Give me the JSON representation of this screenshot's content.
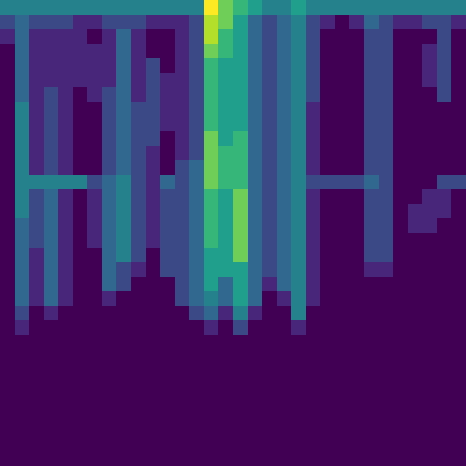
{
  "chart_data": {
    "type": "heatmap",
    "tick_labels": false,
    "color": "viridis",
    "color_range": [
      0,
      9
    ],
    "values": [
      [
        4,
        4,
        4,
        4,
        4,
        4,
        4,
        4,
        4,
        4,
        4,
        4,
        4,
        4,
        9,
        7,
        6,
        5,
        4,
        4,
        5,
        4,
        4,
        4,
        4,
        4,
        4,
        4,
        4,
        4,
        4,
        4
      ],
      [
        2,
        3,
        2,
        2,
        2,
        1,
        1,
        2,
        2,
        2,
        1,
        1,
        1,
        2,
        8,
        7,
        5,
        3,
        2,
        3,
        4,
        2,
        1,
        0,
        1,
        3,
        2,
        1,
        1,
        2,
        2,
        1
      ],
      [
        1,
        3,
        1,
        1,
        1,
        1,
        0,
        1,
        3,
        1,
        0,
        0,
        1,
        2,
        8,
        6,
        5,
        3,
        2,
        3,
        4,
        2,
        0,
        0,
        0,
        2,
        2,
        0,
        0,
        0,
        2,
        0
      ],
      [
        0,
        3,
        1,
        1,
        1,
        1,
        1,
        1,
        3,
        1,
        0,
        0,
        1,
        2,
        7,
        6,
        5,
        3,
        2,
        3,
        4,
        2,
        0,
        0,
        0,
        2,
        2,
        0,
        0,
        1,
        2,
        0
      ],
      [
        0,
        3,
        1,
        1,
        1,
        1,
        1,
        1,
        3,
        1,
        2,
        0,
        1,
        2,
        6,
        5,
        5,
        3,
        2,
        3,
        4,
        2,
        0,
        0,
        0,
        2,
        2,
        0,
        0,
        1,
        2,
        0
      ],
      [
        0,
        3,
        1,
        1,
        1,
        1,
        1,
        1,
        3,
        1,
        2,
        1,
        1,
        2,
        6,
        5,
        5,
        3,
        2,
        3,
        4,
        2,
        0,
        0,
        0,
        2,
        2,
        0,
        0,
        1,
        2,
        0
      ],
      [
        0,
        3,
        1,
        2,
        1,
        0,
        1,
        2,
        3,
        1,
        2,
        1,
        1,
        2,
        6,
        5,
        5,
        3,
        2,
        3,
        4,
        2,
        0,
        0,
        0,
        2,
        2,
        0,
        0,
        0,
        2,
        0
      ],
      [
        0,
        4,
        1,
        2,
        1,
        0,
        0,
        2,
        3,
        2,
        2,
        1,
        1,
        2,
        6,
        5,
        5,
        3,
        2,
        3,
        4,
        1,
        0,
        0,
        0,
        2,
        2,
        0,
        0,
        0,
        0,
        0
      ],
      [
        0,
        4,
        1,
        2,
        1,
        0,
        0,
        2,
        3,
        2,
        2,
        1,
        1,
        2,
        6,
        5,
        5,
        3,
        2,
        3,
        4,
        1,
        0,
        0,
        0,
        2,
        2,
        0,
        0,
        0,
        0,
        0
      ],
      [
        0,
        4,
        1,
        2,
        1,
        0,
        0,
        2,
        3,
        2,
        2,
        0,
        1,
        2,
        7,
        5,
        6,
        3,
        2,
        3,
        4,
        1,
        0,
        0,
        0,
        2,
        2,
        0,
        0,
        0,
        0,
        0
      ],
      [
        0,
        4,
        1,
        2,
        1,
        0,
        0,
        2,
        3,
        2,
        1,
        0,
        1,
        2,
        7,
        6,
        6,
        3,
        2,
        3,
        4,
        1,
        0,
        0,
        0,
        2,
        2,
        0,
        0,
        0,
        0,
        0
      ],
      [
        0,
        4,
        1,
        2,
        1,
        0,
        0,
        2,
        3,
        2,
        1,
        0,
        2,
        3,
        7,
        6,
        6,
        3,
        2,
        3,
        4,
        1,
        0,
        0,
        0,
        2,
        2,
        0,
        0,
        0,
        0,
        0
      ],
      [
        0,
        4,
        4,
        4,
        4,
        4,
        2,
        3,
        4,
        2,
        1,
        3,
        2,
        3,
        7,
        6,
        6,
        3,
        2,
        3,
        4,
        2,
        2,
        2,
        2,
        3,
        2,
        0,
        0,
        0,
        2,
        2
      ],
      [
        0,
        4,
        2,
        3,
        1,
        0,
        1,
        3,
        4,
        2,
        1,
        2,
        2,
        3,
        6,
        5,
        7,
        3,
        2,
        3,
        4,
        1,
        0,
        0,
        0,
        2,
        2,
        0,
        0,
        1,
        1,
        0
      ],
      [
        0,
        4,
        2,
        3,
        1,
        0,
        1,
        3,
        4,
        2,
        1,
        2,
        2,
        3,
        6,
        5,
        7,
        3,
        2,
        3,
        4,
        1,
        0,
        0,
        0,
        2,
        2,
        0,
        1,
        1,
        1,
        0
      ],
      [
        0,
        3,
        2,
        3,
        1,
        0,
        1,
        3,
        4,
        2,
        1,
        2,
        2,
        3,
        6,
        5,
        7,
        3,
        2,
        3,
        4,
        1,
        0,
        0,
        0,
        2,
        2,
        0,
        1,
        1,
        0,
        0
      ],
      [
        0,
        3,
        2,
        3,
        1,
        0,
        1,
        3,
        4,
        2,
        1,
        2,
        2,
        3,
        6,
        5,
        7,
        3,
        2,
        3,
        4,
        1,
        0,
        0,
        0,
        2,
        2,
        0,
        0,
        0,
        0,
        0
      ],
      [
        0,
        3,
        1,
        3,
        1,
        0,
        0,
        3,
        4,
        2,
        0,
        2,
        2,
        3,
        5,
        5,
        7,
        3,
        2,
        3,
        4,
        1,
        0,
        0,
        0,
        2,
        2,
        0,
        0,
        0,
        0,
        0
      ],
      [
        0,
        3,
        1,
        3,
        1,
        0,
        0,
        3,
        2,
        1,
        0,
        2,
        2,
        3,
        5,
        5,
        5,
        3,
        2,
        3,
        4,
        1,
        0,
        0,
        0,
        1,
        1,
        0,
        0,
        0,
        0,
        0
      ],
      [
        0,
        3,
        1,
        3,
        1,
        0,
        0,
        3,
        2,
        0,
        0,
        0,
        2,
        3,
        5,
        3,
        5,
        3,
        1,
        3,
        4,
        1,
        0,
        0,
        0,
        0,
        0,
        0,
        0,
        0,
        0,
        0
      ],
      [
        0,
        3,
        1,
        3,
        1,
        0,
        0,
        1,
        0,
        0,
        0,
        0,
        2,
        3,
        4,
        3,
        5,
        3,
        0,
        1,
        4,
        1,
        0,
        0,
        0,
        0,
        0,
        0,
        0,
        0,
        0,
        0
      ],
      [
        0,
        2,
        0,
        1,
        0,
        0,
        0,
        0,
        0,
        0,
        0,
        0,
        0,
        2,
        3,
        1,
        4,
        1,
        0,
        0,
        4,
        0,
        0,
        0,
        0,
        0,
        0,
        0,
        0,
        0,
        0,
        0
      ],
      [
        0,
        1,
        0,
        0,
        0,
        0,
        0,
        0,
        0,
        0,
        0,
        0,
        0,
        0,
        1,
        0,
        2,
        0,
        0,
        0,
        1,
        0,
        0,
        0,
        0,
        0,
        0,
        0,
        0,
        0,
        0,
        0
      ],
      [
        0,
        0,
        0,
        0,
        0,
        0,
        0,
        0,
        0,
        0,
        0,
        0,
        0,
        0,
        0,
        0,
        0,
        0,
        0,
        0,
        0,
        0,
        0,
        0,
        0,
        0,
        0,
        0,
        0,
        0,
        0,
        0
      ],
      [
        0,
        0,
        0,
        0,
        0,
        0,
        0,
        0,
        0,
        0,
        0,
        0,
        0,
        0,
        0,
        0,
        0,
        0,
        0,
        0,
        0,
        0,
        0,
        0,
        0,
        0,
        0,
        0,
        0,
        0,
        0,
        0
      ],
      [
        0,
        0,
        0,
        0,
        0,
        0,
        0,
        0,
        0,
        0,
        0,
        0,
        0,
        0,
        0,
        0,
        0,
        0,
        0,
        0,
        0,
        0,
        0,
        0,
        0,
        0,
        0,
        0,
        0,
        0,
        0,
        0
      ],
      [
        0,
        0,
        0,
        0,
        0,
        0,
        0,
        0,
        0,
        0,
        0,
        0,
        0,
        0,
        0,
        0,
        0,
        0,
        0,
        0,
        0,
        0,
        0,
        0,
        0,
        0,
        0,
        0,
        0,
        0,
        0,
        0
      ],
      [
        0,
        0,
        0,
        0,
        0,
        0,
        0,
        0,
        0,
        0,
        0,
        0,
        0,
        0,
        0,
        0,
        0,
        0,
        0,
        0,
        0,
        0,
        0,
        0,
        0,
        0,
        0,
        0,
        0,
        0,
        0,
        0
      ],
      [
        0,
        0,
        0,
        0,
        0,
        0,
        0,
        0,
        0,
        0,
        0,
        0,
        0,
        0,
        0,
        0,
        0,
        0,
        0,
        0,
        0,
        0,
        0,
        0,
        0,
        0,
        0,
        0,
        0,
        0,
        0,
        0
      ],
      [
        0,
        0,
        0,
        0,
        0,
        0,
        0,
        0,
        0,
        0,
        0,
        0,
        0,
        0,
        0,
        0,
        0,
        0,
        0,
        0,
        0,
        0,
        0,
        0,
        0,
        0,
        0,
        0,
        0,
        0,
        0,
        0
      ],
      [
        0,
        0,
        0,
        0,
        0,
        0,
        0,
        0,
        0,
        0,
        0,
        0,
        0,
        0,
        0,
        0,
        0,
        0,
        0,
        0,
        0,
        0,
        0,
        0,
        0,
        0,
        0,
        0,
        0,
        0,
        0,
        0
      ],
      [
        0,
        0,
        0,
        0,
        0,
        0,
        0,
        0,
        0,
        0,
        0,
        0,
        0,
        0,
        0,
        0,
        0,
        0,
        0,
        0,
        0,
        0,
        0,
        0,
        0,
        0,
        0,
        0,
        0,
        0,
        0,
        0
      ]
    ]
  }
}
